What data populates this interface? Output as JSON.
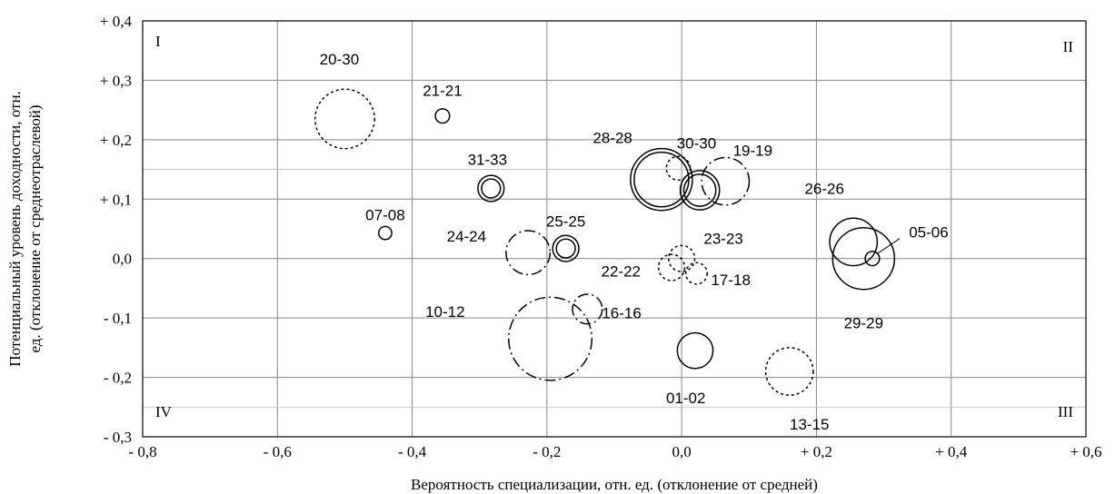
{
  "chart_data": {
    "type": "bubble",
    "xlabel": "Вероятность специализации, отн. ед. (отклонение от средней)",
    "ylabel_lines": [
      "Потенциальный уровень доходности, отн.",
      "ед. (отклонение от среднеотраслевой)"
    ],
    "xlim": [
      -0.8,
      0.6
    ],
    "ylim": [
      -0.3,
      0.4
    ],
    "x_ticks": [
      {
        "value": -0.8,
        "label": "- 0,8"
      },
      {
        "value": -0.6,
        "label": "- 0,6"
      },
      {
        "value": -0.4,
        "label": "- 0,4"
      },
      {
        "value": -0.2,
        "label": "- 0,2"
      },
      {
        "value": 0.0,
        "label": "0,0"
      },
      {
        "value": 0.2,
        "label": "+ 0,2"
      },
      {
        "value": 0.4,
        "label": "+ 0,4"
      },
      {
        "value": 0.6,
        "label": "+ 0,6"
      }
    ],
    "y_ticks": [
      {
        "value": 0.4,
        "label": "+ 0,4"
      },
      {
        "value": 0.3,
        "label": "+ 0,3"
      },
      {
        "value": 0.2,
        "label": "+ 0,2"
      },
      {
        "value": 0.1,
        "label": "+ 0,1"
      },
      {
        "value": 0.0,
        "label": "0,0"
      },
      {
        "value": -0.1,
        "label": "- 0,1"
      },
      {
        "value": -0.2,
        "label": "- 0,2"
      },
      {
        "value": -0.3,
        "label": "- 0,3"
      }
    ],
    "grid": true,
    "quadrant_labels": [
      {
        "text": "I",
        "position": "top-left"
      },
      {
        "text": "II",
        "position": "top-right"
      },
      {
        "text": "IV",
        "position": "bottom-left"
      },
      {
        "text": "III",
        "position": "bottom-right"
      }
    ],
    "bubbles": [
      {
        "label": "20-30",
        "x": -0.5,
        "y": 0.235,
        "size": 0.05,
        "style": "dotted"
      },
      {
        "label": "21-21",
        "x": -0.355,
        "y": 0.24,
        "size": 0.012,
        "style": "solid"
      },
      {
        "label": "31-33",
        "x": -0.283,
        "y": 0.118,
        "size": 0.022,
        "style": "double"
      },
      {
        "label": "07-08",
        "x": -0.44,
        "y": 0.043,
        "size": 0.011,
        "style": "solid"
      },
      {
        "label": "24-24",
        "x": -0.228,
        "y": 0.01,
        "size": 0.037,
        "style": "dashdot"
      },
      {
        "label": "25-25",
        "x": -0.172,
        "y": 0.017,
        "size": 0.022,
        "style": "double"
      },
      {
        "label": "28-28",
        "x": -0.03,
        "y": 0.133,
        "size": 0.052,
        "style": "double"
      },
      {
        "label": "30-30",
        "x": -0.005,
        "y": 0.152,
        "size": 0.02,
        "style": "dotted"
      },
      {
        "label": "19-19",
        "x": 0.065,
        "y": 0.13,
        "size": 0.04,
        "style": "dashdot"
      },
      {
        "label": "",
        "x": 0.027,
        "y": 0.115,
        "size": 0.033,
        "style": "double"
      },
      {
        "label": "23-23",
        "x": 0.0,
        "y": 0.0,
        "size": 0.022,
        "style": "dotted"
      },
      {
        "label": "22-22",
        "x": -0.015,
        "y": -0.015,
        "size": 0.022,
        "style": "dotted"
      },
      {
        "label": "17-18",
        "x": 0.022,
        "y": -0.025,
        "size": 0.018,
        "style": "dotted"
      },
      {
        "label": "16-16",
        "x": -0.14,
        "y": -0.085,
        "size": 0.025,
        "style": "dashdot"
      },
      {
        "label": "10-12",
        "x": -0.195,
        "y": -0.135,
        "size": 0.07,
        "style": "dashdot"
      },
      {
        "label": "01-02",
        "x": 0.02,
        "y": -0.155,
        "size": 0.03,
        "style": "solid"
      },
      {
        "label": "13-15",
        "x": 0.16,
        "y": -0.19,
        "size": 0.04,
        "style": "dotted"
      },
      {
        "label": "26-26",
        "x": 0.255,
        "y": 0.028,
        "size": 0.04,
        "style": "solid"
      },
      {
        "label": "29-29",
        "x": 0.27,
        "y": 0.0,
        "size": 0.052,
        "style": "solid"
      },
      {
        "label": "05-06",
        "x": 0.283,
        "y": 0.0,
        "size": 0.012,
        "style": "solid"
      }
    ]
  }
}
